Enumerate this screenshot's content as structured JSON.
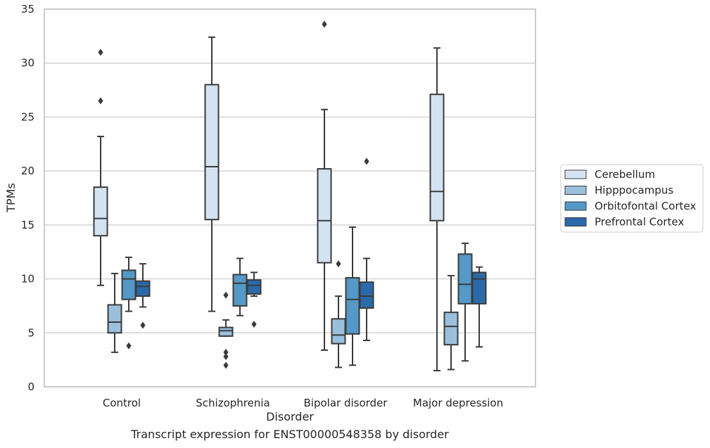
{
  "chart_data": {
    "type": "box",
    "xlabel": "Disorder",
    "ylabel": "TPMs",
    "caption": "Transcript expression for ENST00000548358 by disorder",
    "ylim": [
      0,
      35
    ],
    "yticks": [
      "0",
      "5",
      "10",
      "15",
      "20",
      "25",
      "30",
      "35"
    ],
    "grid": "horizontal",
    "legend_position": "right",
    "categories": [
      "Control",
      "Schizophrenia",
      "Bipolar disorder",
      "Major depression"
    ],
    "series": [
      {
        "name": "Cerebellum",
        "color": "#d4e3f2",
        "boxes": [
          {
            "whislo": 9.4,
            "q1": 14.0,
            "med": 15.6,
            "q3": 18.5,
            "whishi": 23.2,
            "fliers": [
              26.5,
              31.0
            ]
          },
          {
            "whislo": 7.0,
            "q1": 15.5,
            "med": 20.4,
            "q3": 28.0,
            "whishi": 32.4,
            "fliers": []
          },
          {
            "whislo": 3.4,
            "q1": 11.5,
            "med": 15.4,
            "q3": 20.2,
            "whishi": 25.7,
            "fliers": [
              33.6
            ]
          },
          {
            "whislo": 1.5,
            "q1": 15.4,
            "med": 18.1,
            "q3": 27.1,
            "whishi": 31.4,
            "fliers": []
          }
        ]
      },
      {
        "name": "Hipppocampus",
        "color": "#9ac0dc",
        "boxes": [
          {
            "whislo": 3.2,
            "q1": 5.0,
            "med": 6.0,
            "q3": 7.6,
            "whishi": 10.5,
            "fliers": []
          },
          {
            "whislo": 4.7,
            "q1": 4.7,
            "med": 5.2,
            "q3": 5.5,
            "whishi": 6.2,
            "fliers": [
              8.5,
              3.2,
              2.8,
              2.0
            ]
          },
          {
            "whislo": 1.8,
            "q1": 4.0,
            "med": 4.8,
            "q3": 6.3,
            "whishi": 8.4,
            "fliers": [
              11.4
            ]
          },
          {
            "whislo": 1.6,
            "q1": 3.9,
            "med": 5.6,
            "q3": 6.9,
            "whishi": 10.3,
            "fliers": []
          }
        ]
      },
      {
        "name": "Orbitofontal Cortex",
        "color": "#5499c7",
        "boxes": [
          {
            "whislo": 7.0,
            "q1": 8.1,
            "med": 10.0,
            "q3": 10.8,
            "whishi": 12.0,
            "fliers": [
              3.8
            ]
          },
          {
            "whislo": 6.6,
            "q1": 7.5,
            "med": 9.6,
            "q3": 10.4,
            "whishi": 11.9,
            "fliers": []
          },
          {
            "whislo": 2.0,
            "q1": 4.9,
            "med": 8.1,
            "q3": 10.1,
            "whishi": 14.8,
            "fliers": []
          },
          {
            "whislo": 2.4,
            "q1": 7.7,
            "med": 9.5,
            "q3": 12.3,
            "whishi": 13.3,
            "fliers": []
          }
        ]
      },
      {
        "name": "Prefrontal Cortex",
        "color": "#2b6aa9",
        "boxes": [
          {
            "whislo": 7.4,
            "q1": 8.4,
            "med": 9.3,
            "q3": 9.8,
            "whishi": 11.4,
            "fliers": [
              5.7
            ]
          },
          {
            "whislo": 8.4,
            "q1": 8.6,
            "med": 9.4,
            "q3": 9.9,
            "whishi": 10.6,
            "fliers": [
              5.8
            ]
          },
          {
            "whislo": 4.3,
            "q1": 7.3,
            "med": 8.4,
            "q3": 9.7,
            "whishi": 11.9,
            "fliers": [
              20.9
            ]
          },
          {
            "whislo": 3.7,
            "q1": 7.7,
            "med": 10.0,
            "q3": 10.6,
            "whishi": 11.1,
            "fliers": []
          }
        ]
      }
    ]
  }
}
